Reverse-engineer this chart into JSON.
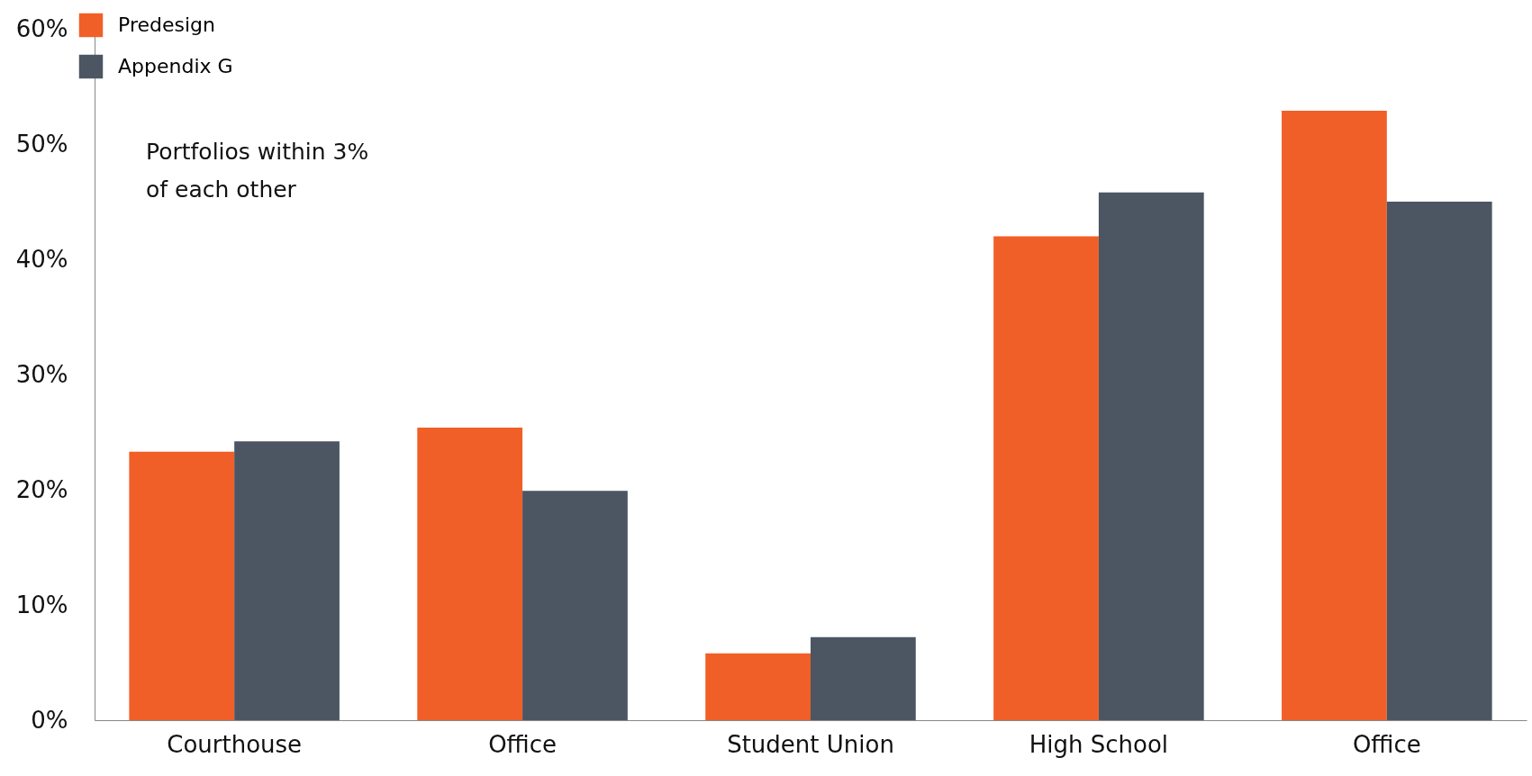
{
  "chart_data": {
    "type": "bar",
    "categories": [
      "Courthouse",
      "Office",
      "Student Union",
      "High School",
      "Office"
    ],
    "series": [
      {
        "name": "Predesign",
        "color": "#f15f28",
        "values": [
          23.3,
          25.4,
          5.8,
          42.0,
          52.9
        ]
      },
      {
        "name": "Appendix G",
        "color": "#4b5662",
        "values": [
          24.2,
          19.9,
          7.2,
          45.8,
          45.0
        ]
      }
    ],
    "ylim": [
      0,
      60
    ],
    "yticks": [
      {
        "value": 0,
        "label": "0%"
      },
      {
        "value": 10,
        "label": "10%"
      },
      {
        "value": 20,
        "label": "20%"
      },
      {
        "value": 30,
        "label": "30%"
      },
      {
        "value": 40,
        "label": "40%"
      },
      {
        "value": 50,
        "label": "50%"
      },
      {
        "value": 60,
        "label": "60%"
      }
    ],
    "annotations": [
      "Portfolios within 3%\nof each other"
    ],
    "legend": "top left",
    "grid": false
  }
}
